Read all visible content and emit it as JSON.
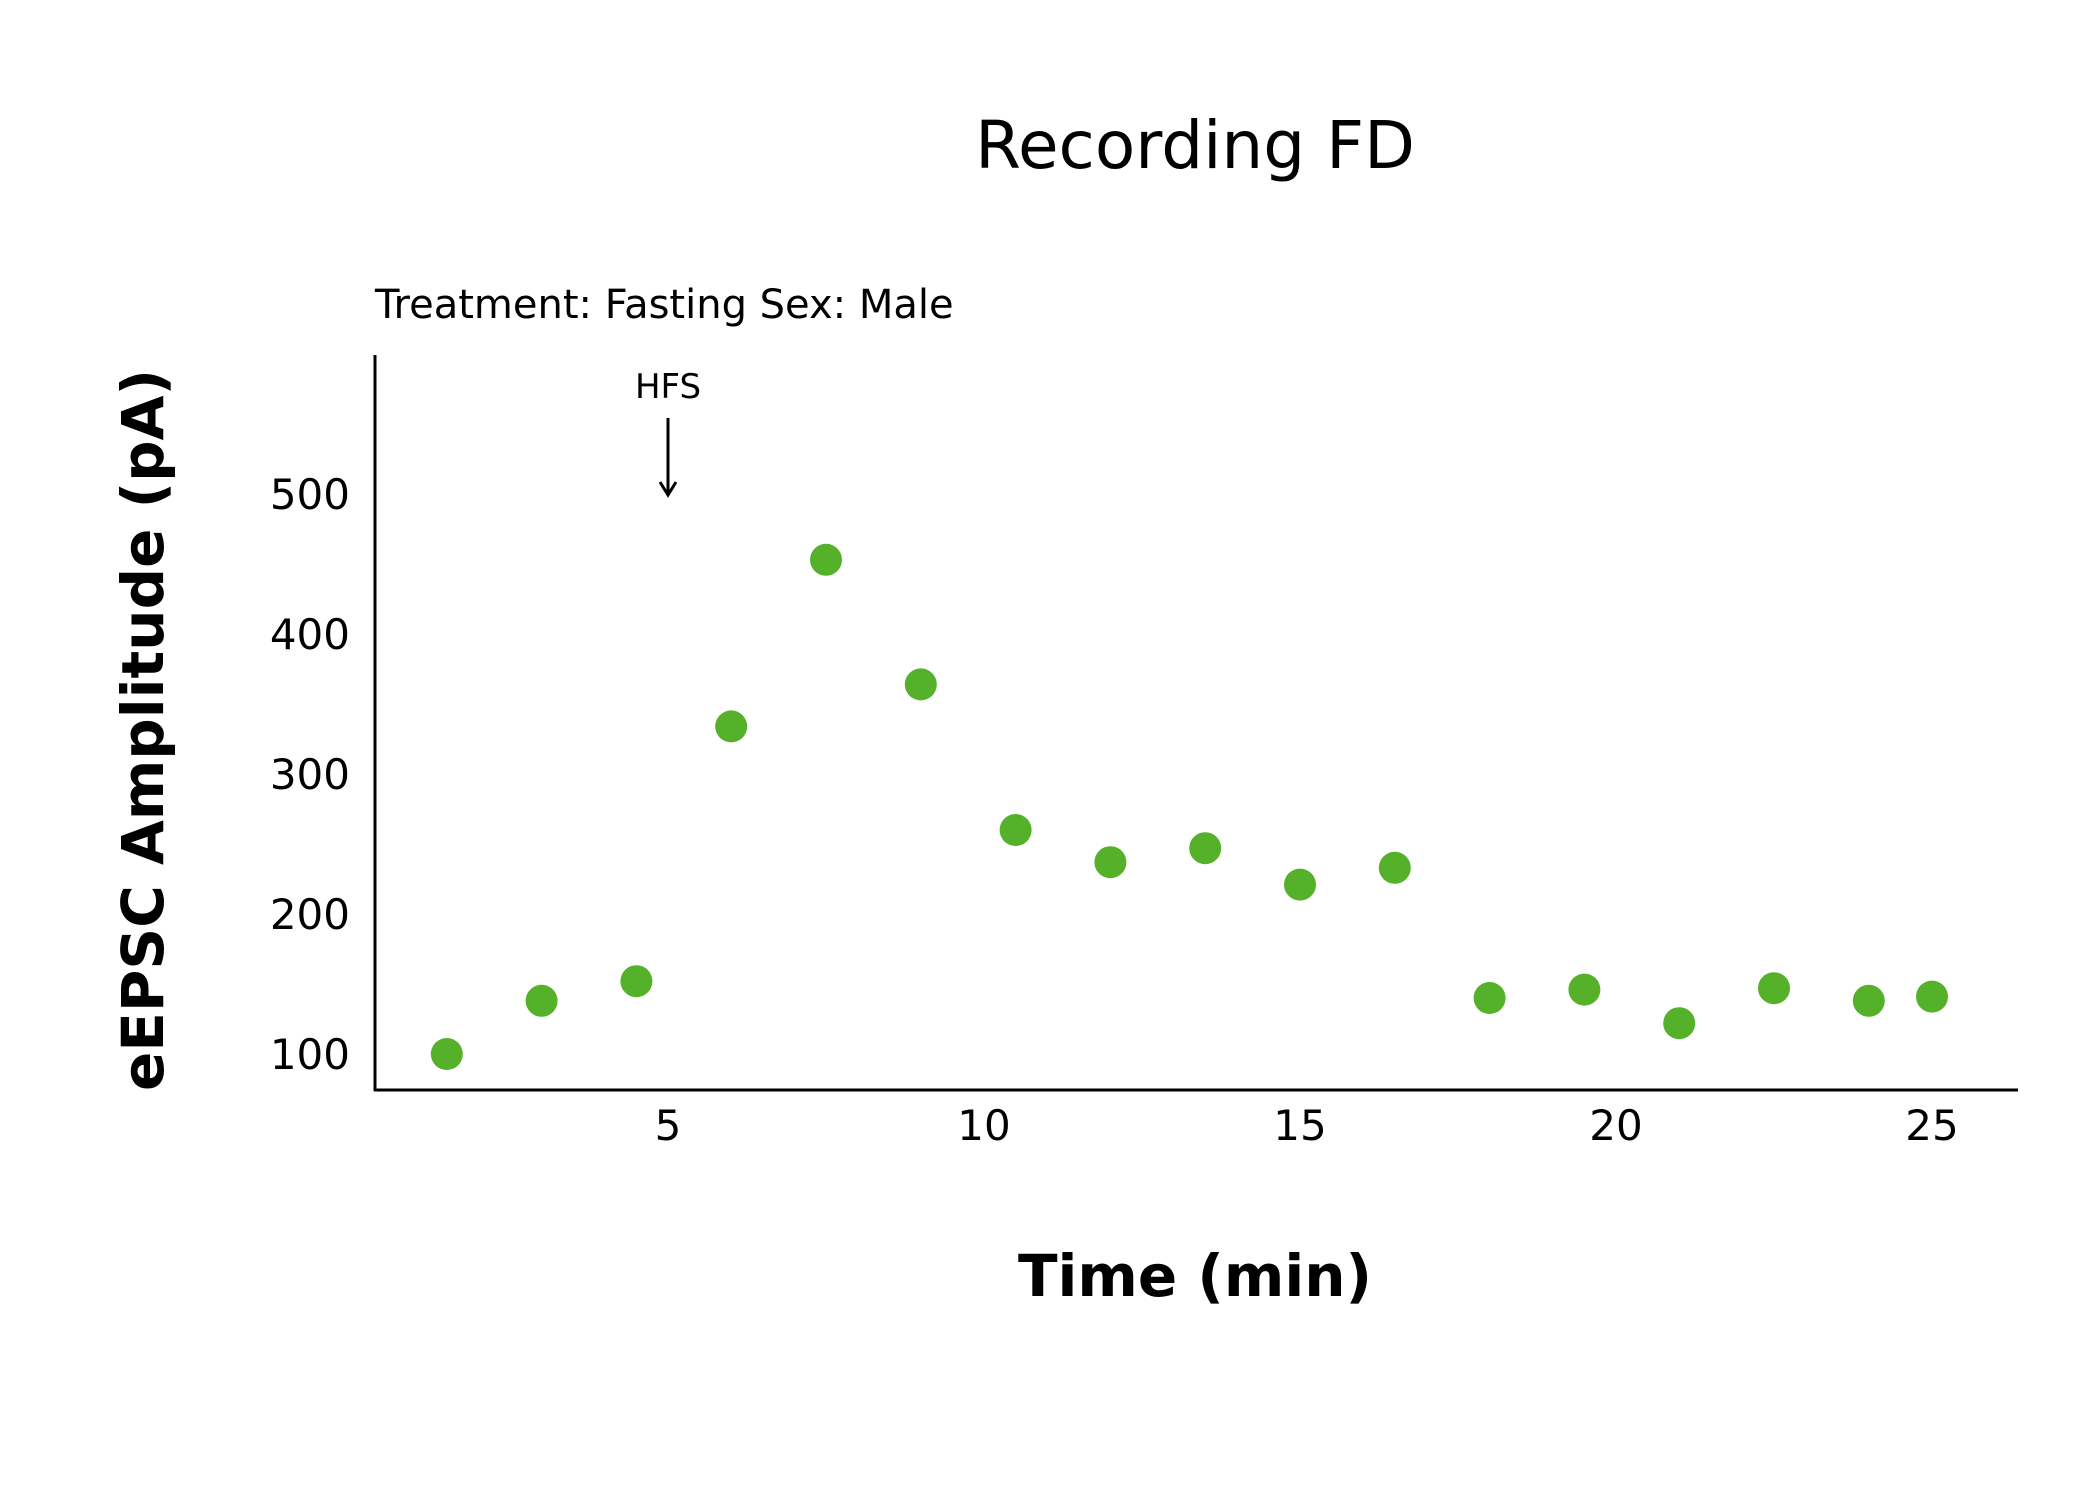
{
  "chart_data": {
    "type": "scatter",
    "title": "Recording FD",
    "subtitle": "Treatment: Fasting  Sex: Male",
    "xlabel": "Time (min)",
    "ylabel": "eEPSC Amplitude (pA)",
    "xlim": [
      0.3,
      26.0
    ],
    "ylim": [
      80,
      600
    ],
    "x_ticks": [
      5,
      10,
      15,
      20,
      25
    ],
    "y_ticks": [
      100,
      200,
      300,
      400,
      500
    ],
    "grid": false,
    "marker_color": "#55b02a",
    "annotation": {
      "text": "HFS",
      "x": 5
    },
    "series": [
      {
        "x": [
          1.5,
          3,
          4.5,
          6,
          7.5,
          9,
          10.5,
          12,
          13.5,
          15,
          16.5,
          18,
          19.5,
          21,
          22.5,
          24,
          25
        ],
        "y": [
          100,
          138,
          152,
          334,
          453,
          364,
          260,
          237,
          247,
          221,
          233,
          140,
          146,
          122,
          147,
          138,
          141
        ]
      }
    ]
  }
}
